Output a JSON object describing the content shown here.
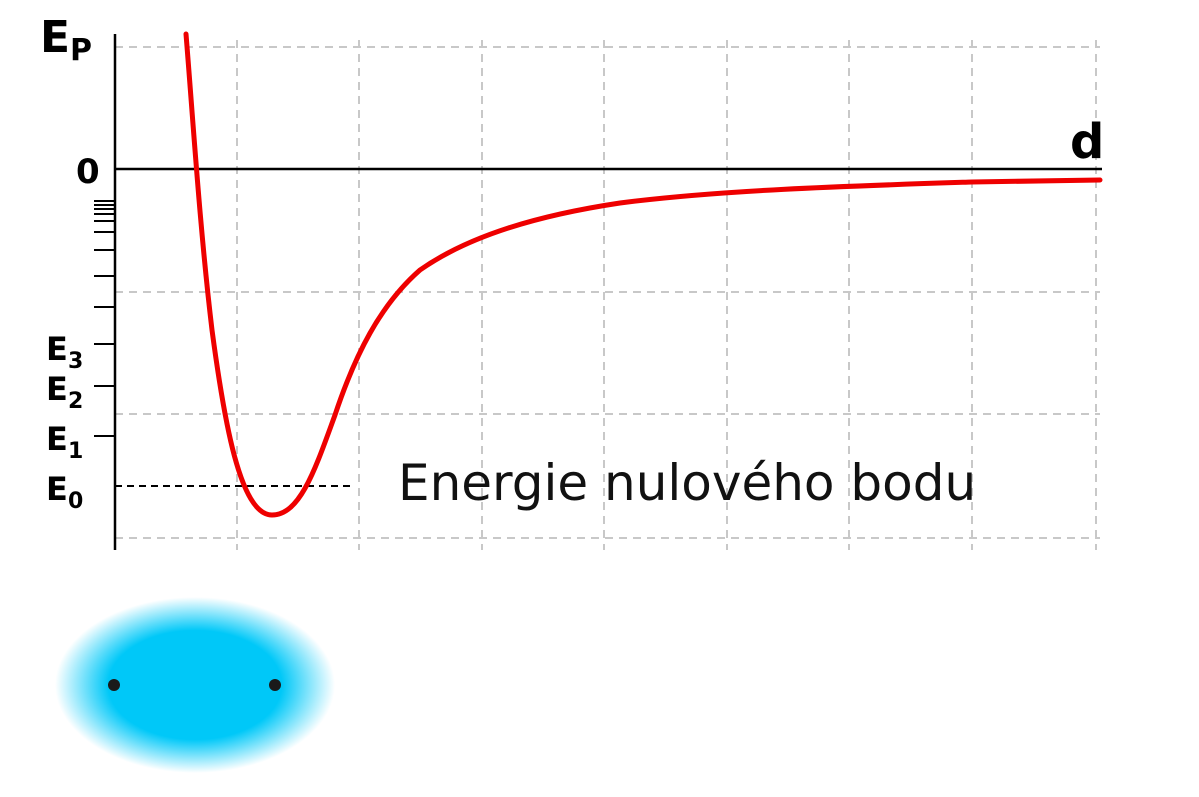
{
  "labels": {
    "y_axis_main": "E",
    "y_axis_sub": "P",
    "x_axis": "d",
    "zero": "0",
    "caption": "Energie nulového bodu"
  },
  "levels": [
    {
      "name": "E0",
      "main": "E",
      "sub": "0"
    },
    {
      "name": "E1",
      "main": "E",
      "sub": "1"
    },
    {
      "name": "E2",
      "main": "E",
      "sub": "2"
    },
    {
      "name": "E3",
      "main": "E",
      "sub": "3"
    }
  ],
  "colors": {
    "curve": "#ee0000",
    "grid": "#c8c8c8",
    "axis": "#000000",
    "cloud": "#00c8f8",
    "dot": "#1a1a1a"
  },
  "illustration": {
    "type": "molecule-electron-cloud",
    "atoms": 2
  }
}
